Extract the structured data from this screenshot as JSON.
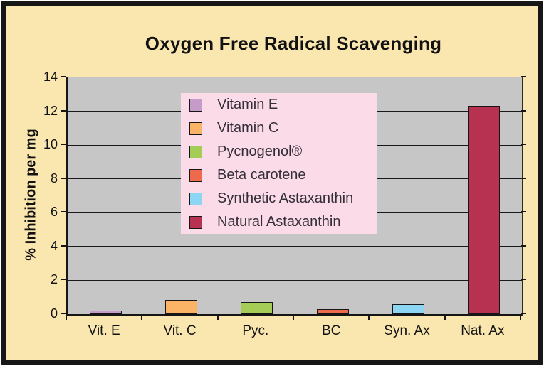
{
  "title": "Oxygen Free Radical Scavenging",
  "y_axis_title": "% Inhibition per mg",
  "colors": {
    "panel_bg": "#fae6af",
    "panel_border": "#161616",
    "plot_bg": "#c6c6c6",
    "grid_line": "#1a1a1a",
    "legend_bg": "#fbdbe7",
    "text": "#121212"
  },
  "chart_data": {
    "type": "bar",
    "title": "Oxygen Free Radical Scavenging",
    "xlabel": "",
    "ylabel": "% Inhibition per mg",
    "ylim": [
      0,
      14
    ],
    "yticks": [
      0,
      2,
      4,
      6,
      8,
      10,
      12,
      14
    ],
    "grid": true,
    "legend_position": "inside plot, upper center",
    "categories": [
      "Vit. E",
      "Vit. C",
      "Pyc.",
      "BC",
      "Syn. Ax",
      "Nat. Ax"
    ],
    "values": [
      0.2,
      0.85,
      0.7,
      0.3,
      0.6,
      12.3
    ],
    "bar_colors": [
      "#c79bc9",
      "#fbb365",
      "#a6cc58",
      "#ee6a4c",
      "#8cd6f4",
      "#b73150"
    ],
    "legend": [
      {
        "label": "Vitamin E",
        "color": "#c79bc9"
      },
      {
        "label": "Vitamin C",
        "color": "#fbb365"
      },
      {
        "label": "Pycnogenol®",
        "color": "#a6cc58"
      },
      {
        "label": "Beta carotene",
        "color": "#ee6a4c"
      },
      {
        "label": "Synthetic Astaxanthin",
        "color": "#8cd6f4"
      },
      {
        "label": "Natural Astaxanthin",
        "color": "#b73150"
      }
    ]
  }
}
